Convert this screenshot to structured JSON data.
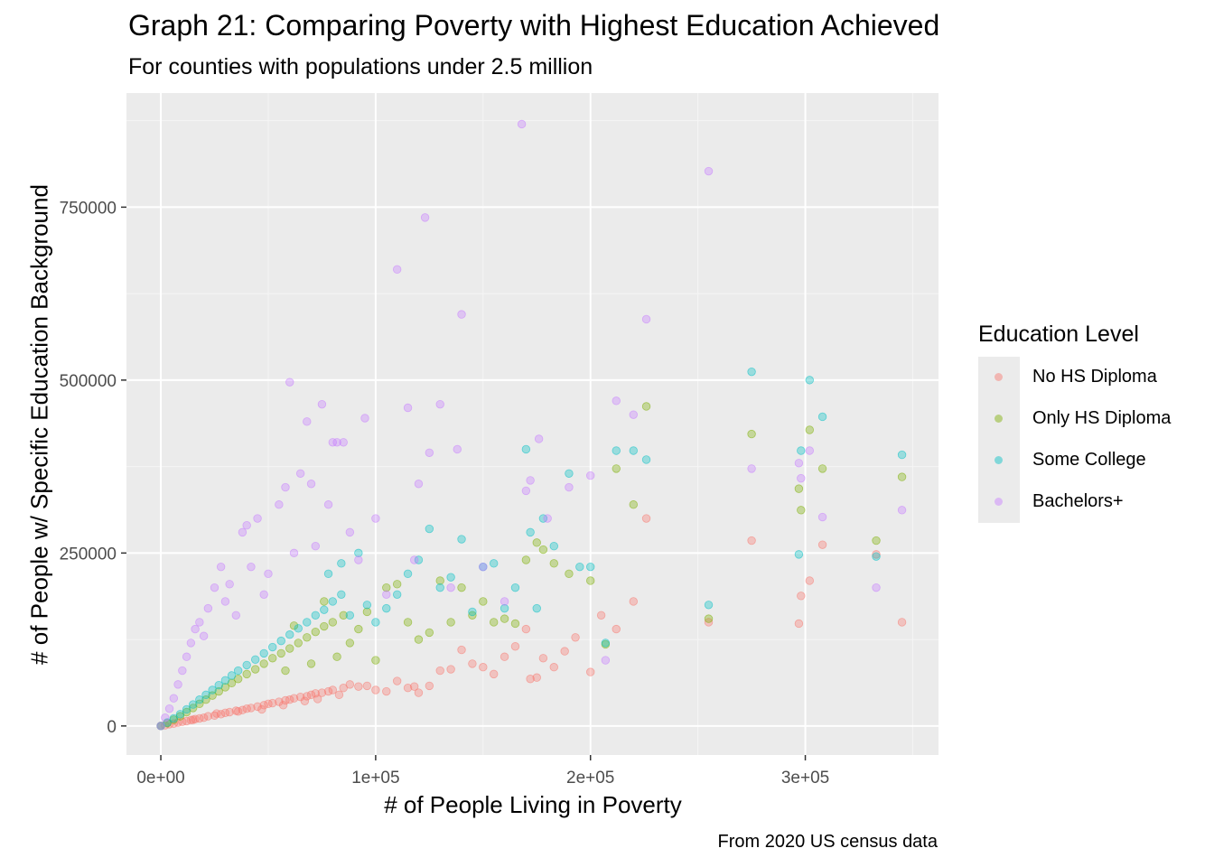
{
  "chart_data": {
    "type": "scatter",
    "title": "Graph 21: Comparing Poverty with Highest Education Achieved",
    "subtitle": "For counties with populations under 2.5 million",
    "caption": "From 2020 US census data",
    "xlabel": "# of People Living in Poverty",
    "ylabel": "# of People w/ Specific Education Background",
    "xlim": [
      -16000,
      362000
    ],
    "ylim": [
      -42000,
      915000
    ],
    "x_ticks": [
      0,
      100000,
      200000,
      300000
    ],
    "x_tick_labels": [
      "0e+00",
      "1e+05",
      "2e+05",
      "3e+05"
    ],
    "y_ticks": [
      0,
      250000,
      500000,
      750000
    ],
    "y_tick_labels": [
      "0",
      "250000",
      "500000",
      "750000"
    ],
    "grid": true,
    "legend_title": "Education Level",
    "legend_position": "right",
    "series": [
      {
        "name": "No HS Diploma",
        "color": "#F8766D",
        "points": [
          [
            0,
            0
          ],
          [
            2000,
            1000
          ],
          [
            4000,
            2500
          ],
          [
            6000,
            3500
          ],
          [
            8000,
            5000
          ],
          [
            10000,
            6000
          ],
          [
            12000,
            7000
          ],
          [
            14000,
            8500
          ],
          [
            16000,
            10000
          ],
          [
            18000,
            11000
          ],
          [
            20000,
            12000
          ],
          [
            22000,
            14000
          ],
          [
            25000,
            15000
          ],
          [
            28000,
            17000
          ],
          [
            30000,
            19000
          ],
          [
            32000,
            20000
          ],
          [
            35000,
            22000
          ],
          [
            38000,
            23000
          ],
          [
            40000,
            25000
          ],
          [
            42000,
            26000
          ],
          [
            45000,
            28000
          ],
          [
            48000,
            30000
          ],
          [
            50000,
            32000
          ],
          [
            52000,
            33000
          ],
          [
            55000,
            35000
          ],
          [
            58000,
            37000
          ],
          [
            60000,
            38000
          ],
          [
            62000,
            40000
          ],
          [
            65000,
            42000
          ],
          [
            68000,
            43000
          ],
          [
            70000,
            45000
          ],
          [
            72000,
            47000
          ],
          [
            75000,
            48000
          ],
          [
            78000,
            50000
          ],
          [
            80000,
            52000
          ],
          [
            85000,
            55000
          ],
          [
            88000,
            60000
          ],
          [
            92000,
            57000
          ],
          [
            96000,
            58000
          ],
          [
            100000,
            52000
          ],
          [
            105000,
            50000
          ],
          [
            110000,
            65000
          ],
          [
            115000,
            55000
          ],
          [
            118000,
            57000
          ],
          [
            120000,
            48000
          ],
          [
            125000,
            58000
          ],
          [
            130000,
            80000
          ],
          [
            135000,
            82000
          ],
          [
            140000,
            110000
          ],
          [
            145000,
            90000
          ],
          [
            150000,
            85000
          ],
          [
            155000,
            75000
          ],
          [
            160000,
            100000
          ],
          [
            165000,
            115000
          ],
          [
            170000,
            140000
          ],
          [
            172000,
            68000
          ],
          [
            175000,
            70000
          ],
          [
            178000,
            98000
          ],
          [
            183000,
            85000
          ],
          [
            188000,
            108000
          ],
          [
            193000,
            128000
          ],
          [
            200000,
            78000
          ],
          [
            205000,
            160000
          ],
          [
            212000,
            140000
          ],
          [
            220000,
            180000
          ],
          [
            226000,
            300000
          ],
          [
            255000,
            150000
          ],
          [
            275000,
            268000
          ],
          [
            297000,
            148000
          ],
          [
            298000,
            188000
          ],
          [
            302000,
            210000
          ],
          [
            308000,
            262000
          ],
          [
            333000,
            248000
          ],
          [
            345000,
            150000
          ],
          [
            15000,
            9000
          ],
          [
            26000,
            18000
          ],
          [
            36000,
            21000
          ],
          [
            47000,
            24000
          ],
          [
            57000,
            30000
          ],
          [
            67000,
            36000
          ],
          [
            73000,
            39000
          ],
          [
            83000,
            45000
          ]
        ]
      },
      {
        "name": "Only HS Diploma",
        "color": "#7CAE00",
        "points": [
          [
            0,
            0
          ],
          [
            3000,
            4000
          ],
          [
            6000,
            9000
          ],
          [
            9000,
            14000
          ],
          [
            12000,
            20000
          ],
          [
            15000,
            26000
          ],
          [
            18000,
            32000
          ],
          [
            21000,
            38000
          ],
          [
            24000,
            44000
          ],
          [
            27000,
            50000
          ],
          [
            30000,
            56000
          ],
          [
            33000,
            62000
          ],
          [
            36000,
            68000
          ],
          [
            40000,
            75000
          ],
          [
            44000,
            82000
          ],
          [
            48000,
            90000
          ],
          [
            52000,
            98000
          ],
          [
            56000,
            105000
          ],
          [
            60000,
            112000
          ],
          [
            64000,
            120000
          ],
          [
            68000,
            128000
          ],
          [
            72000,
            136000
          ],
          [
            76000,
            144000
          ],
          [
            80000,
            150000
          ],
          [
            85000,
            160000
          ],
          [
            88000,
            120000
          ],
          [
            92000,
            140000
          ],
          [
            96000,
            165000
          ],
          [
            100000,
            95000
          ],
          [
            105000,
            200000
          ],
          [
            110000,
            205000
          ],
          [
            115000,
            150000
          ],
          [
            120000,
            125000
          ],
          [
            125000,
            135000
          ],
          [
            130000,
            210000
          ],
          [
            135000,
            150000
          ],
          [
            140000,
            200000
          ],
          [
            145000,
            160000
          ],
          [
            150000,
            180000
          ],
          [
            155000,
            150000
          ],
          [
            160000,
            155000
          ],
          [
            165000,
            148000
          ],
          [
            170000,
            240000
          ],
          [
            175000,
            265000
          ],
          [
            178000,
            255000
          ],
          [
            183000,
            235000
          ],
          [
            190000,
            220000
          ],
          [
            200000,
            210000
          ],
          [
            207000,
            118000
          ],
          [
            212000,
            372000
          ],
          [
            220000,
            320000
          ],
          [
            226000,
            462000
          ],
          [
            255000,
            155000
          ],
          [
            275000,
            422000
          ],
          [
            297000,
            343000
          ],
          [
            298000,
            312000
          ],
          [
            302000,
            428000
          ],
          [
            308000,
            372000
          ],
          [
            333000,
            268000
          ],
          [
            345000,
            360000
          ],
          [
            76000,
            180000
          ],
          [
            82000,
            100000
          ],
          [
            62000,
            145000
          ],
          [
            70000,
            90000
          ],
          [
            58000,
            80000
          ]
        ]
      },
      {
        "name": "Some College",
        "color": "#00BFC4",
        "points": [
          [
            0,
            0
          ],
          [
            3000,
            5000
          ],
          [
            6000,
            11000
          ],
          [
            9000,
            17000
          ],
          [
            12000,
            24000
          ],
          [
            15000,
            31000
          ],
          [
            18000,
            38000
          ],
          [
            21000,
            45000
          ],
          [
            24000,
            52000
          ],
          [
            27000,
            59000
          ],
          [
            30000,
            66000
          ],
          [
            33000,
            73000
          ],
          [
            36000,
            80000
          ],
          [
            40000,
            88000
          ],
          [
            44000,
            96000
          ],
          [
            48000,
            105000
          ],
          [
            52000,
            114000
          ],
          [
            56000,
            123000
          ],
          [
            60000,
            132000
          ],
          [
            64000,
            141000
          ],
          [
            68000,
            150000
          ],
          [
            72000,
            160000
          ],
          [
            76000,
            168000
          ],
          [
            80000,
            180000
          ],
          [
            84000,
            190000
          ],
          [
            88000,
            160000
          ],
          [
            92000,
            250000
          ],
          [
            96000,
            175000
          ],
          [
            100000,
            150000
          ],
          [
            105000,
            170000
          ],
          [
            110000,
            190000
          ],
          [
            115000,
            220000
          ],
          [
            120000,
            240000
          ],
          [
            125000,
            285000
          ],
          [
            130000,
            200000
          ],
          [
            135000,
            215000
          ],
          [
            140000,
            270000
          ],
          [
            145000,
            165000
          ],
          [
            150000,
            230000
          ],
          [
            155000,
            235000
          ],
          [
            160000,
            170000
          ],
          [
            165000,
            200000
          ],
          [
            170000,
            400000
          ],
          [
            172000,
            280000
          ],
          [
            175000,
            170000
          ],
          [
            178000,
            300000
          ],
          [
            183000,
            260000
          ],
          [
            190000,
            365000
          ],
          [
            195000,
            230000
          ],
          [
            200000,
            230000
          ],
          [
            207000,
            120000
          ],
          [
            212000,
            398000
          ],
          [
            220000,
            398000
          ],
          [
            226000,
            385000
          ],
          [
            255000,
            175000
          ],
          [
            275000,
            512000
          ],
          [
            297000,
            248000
          ],
          [
            298000,
            398000
          ],
          [
            302000,
            500000
          ],
          [
            308000,
            447000
          ],
          [
            333000,
            245000
          ],
          [
            345000,
            392000
          ],
          [
            78000,
            220000
          ],
          [
            84000,
            235000
          ]
        ]
      },
      {
        "name": "Bachelors+",
        "color": "#C77CFF",
        "points": [
          [
            0,
            0
          ],
          [
            2000,
            12000
          ],
          [
            4000,
            25000
          ],
          [
            6000,
            40000
          ],
          [
            8000,
            60000
          ],
          [
            10000,
            80000
          ],
          [
            12000,
            100000
          ],
          [
            14000,
            120000
          ],
          [
            16000,
            140000
          ],
          [
            18000,
            150000
          ],
          [
            20000,
            130000
          ],
          [
            22000,
            170000
          ],
          [
            25000,
            200000
          ],
          [
            28000,
            230000
          ],
          [
            30000,
            180000
          ],
          [
            32000,
            205000
          ],
          [
            35000,
            160000
          ],
          [
            38000,
            280000
          ],
          [
            40000,
            290000
          ],
          [
            42000,
            230000
          ],
          [
            45000,
            300000
          ],
          [
            48000,
            190000
          ],
          [
            50000,
            220000
          ],
          [
            55000,
            320000
          ],
          [
            58000,
            345000
          ],
          [
            60000,
            497000
          ],
          [
            62000,
            250000
          ],
          [
            65000,
            365000
          ],
          [
            68000,
            440000
          ],
          [
            70000,
            350000
          ],
          [
            72000,
            260000
          ],
          [
            75000,
            465000
          ],
          [
            78000,
            320000
          ],
          [
            80000,
            410000
          ],
          [
            82000,
            410000
          ],
          [
            85000,
            410000
          ],
          [
            88000,
            280000
          ],
          [
            92000,
            240000
          ],
          [
            95000,
            445000
          ],
          [
            100000,
            300000
          ],
          [
            105000,
            190000
          ],
          [
            110000,
            660000
          ],
          [
            115000,
            460000
          ],
          [
            118000,
            240000
          ],
          [
            120000,
            350000
          ],
          [
            123000,
            735000
          ],
          [
            125000,
            395000
          ],
          [
            130000,
            465000
          ],
          [
            135000,
            200000
          ],
          [
            138000,
            400000
          ],
          [
            140000,
            595000
          ],
          [
            150000,
            230000
          ],
          [
            160000,
            180000
          ],
          [
            168000,
            870000
          ],
          [
            170000,
            340000
          ],
          [
            172000,
            355000
          ],
          [
            176000,
            415000
          ],
          [
            180000,
            300000
          ],
          [
            190000,
            345000
          ],
          [
            200000,
            362000
          ],
          [
            207000,
            95000
          ],
          [
            212000,
            470000
          ],
          [
            220000,
            450000
          ],
          [
            226000,
            588000
          ],
          [
            255000,
            802000
          ],
          [
            275000,
            372000
          ],
          [
            297000,
            380000
          ],
          [
            298000,
            358000
          ],
          [
            302000,
            398000
          ],
          [
            308000,
            302000
          ],
          [
            333000,
            200000
          ],
          [
            345000,
            312000
          ]
        ]
      }
    ]
  }
}
